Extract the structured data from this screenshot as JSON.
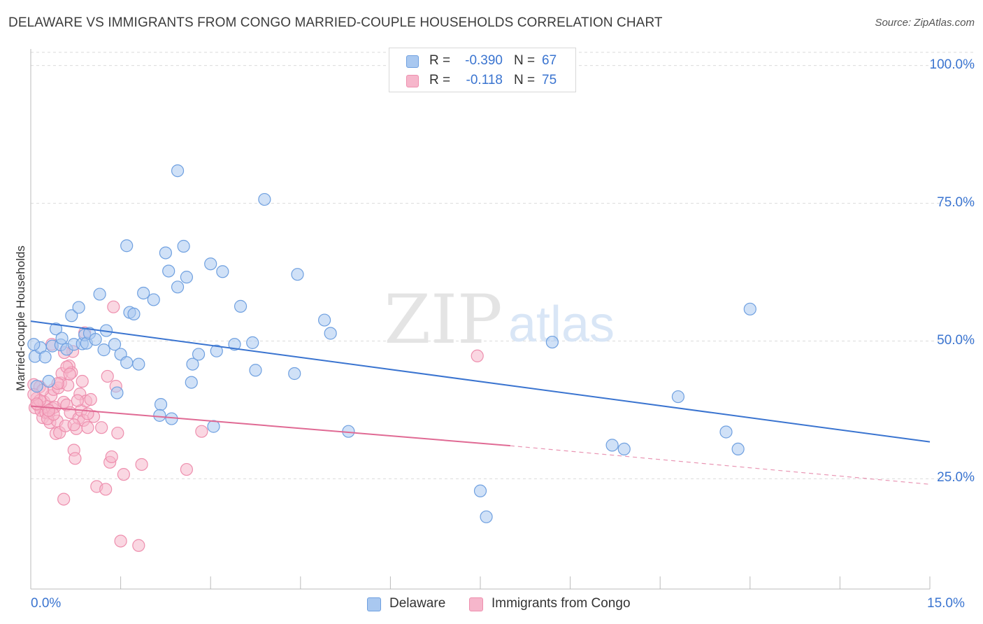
{
  "header": {
    "title": "DELAWARE VS IMMIGRANTS FROM CONGO MARRIED-COUPLE HOUSEHOLDS CORRELATION CHART",
    "source": "Source: ZipAtlas.com"
  },
  "stats": [
    {
      "r_label": "R =",
      "r_value": "-0.390",
      "n_label": "N =",
      "n_value": "67",
      "color": "#a9c8f0"
    },
    {
      "r_label": "R =",
      "r_value": "-0.118",
      "n_label": "N =",
      "n_value": "75",
      "color": "#f6b6cb"
    }
  ],
  "watermark": {
    "zip": "ZIP",
    "atlas": "atlas"
  },
  "chart_data": {
    "type": "scatter",
    "title": "DELAWARE VS IMMIGRANTS FROM CONGO MARRIED-COUPLE HOUSEHOLDS CORRELATION CHART",
    "xlabel": "",
    "ylabel": "Married-couple Households",
    "xlim": [
      0,
      15
    ],
    "ylim": [
      5,
      103
    ],
    "x_tick_labels": [
      "0.0%",
      "15.0%"
    ],
    "y_ticks": [
      25,
      50,
      75,
      100
    ],
    "y_tick_labels": [
      "25.0%",
      "50.0%",
      "75.0%",
      "100.0%"
    ],
    "grid": true,
    "legend": [
      "Delaware",
      "Immigrants from Congo"
    ],
    "series": [
      {
        "name": "Delaware",
        "color": "#6fa0e0",
        "fill": "#a9c8f0",
        "line_color": "#3a74d0",
        "trend": {
          "x0": 0,
          "y0": 53.6,
          "x1": 15,
          "y1": 31.7
        },
        "points": [
          [
            0.07,
            47.2
          ],
          [
            0.16,
            48.8
          ],
          [
            0.24,
            47.1
          ],
          [
            0.3,
            42.7
          ],
          [
            0.36,
            49.1
          ],
          [
            0.42,
            52.2
          ],
          [
            0.5,
            49.3
          ],
          [
            0.52,
            50.5
          ],
          [
            0.6,
            48.5
          ],
          [
            0.68,
            54.6
          ],
          [
            0.72,
            49.4
          ],
          [
            0.8,
            56.1
          ],
          [
            0.86,
            49.5
          ],
          [
            0.9,
            51.1
          ],
          [
            0.93,
            49.6
          ],
          [
            0.98,
            51.4
          ],
          [
            1.08,
            50.3
          ],
          [
            1.15,
            58.5
          ],
          [
            1.22,
            48.4
          ],
          [
            1.26,
            51.9
          ],
          [
            1.4,
            49.4
          ],
          [
            1.44,
            40.6
          ],
          [
            1.5,
            47.6
          ],
          [
            1.6,
            46.1
          ],
          [
            1.6,
            67.3
          ],
          [
            1.65,
            55.2
          ],
          [
            1.72,
            54.9
          ],
          [
            1.8,
            45.8
          ],
          [
            1.88,
            58.7
          ],
          [
            2.05,
            57.5
          ],
          [
            2.17,
            38.5
          ],
          [
            2.15,
            36.5
          ],
          [
            2.25,
            66.0
          ],
          [
            2.3,
            62.7
          ],
          [
            2.35,
            35.9
          ],
          [
            2.45,
            59.8
          ],
          [
            2.45,
            80.9
          ],
          [
            2.55,
            67.2
          ],
          [
            2.6,
            61.6
          ],
          [
            2.68,
            42.5
          ],
          [
            2.7,
            45.8
          ],
          [
            2.8,
            47.6
          ],
          [
            3.0,
            64.0
          ],
          [
            3.05,
            34.5
          ],
          [
            3.1,
            48.2
          ],
          [
            3.2,
            62.6
          ],
          [
            3.4,
            49.4
          ],
          [
            3.5,
            56.3
          ],
          [
            3.7,
            49.7
          ],
          [
            3.75,
            44.7
          ],
          [
            3.9,
            75.7
          ],
          [
            4.4,
            44.1
          ],
          [
            4.45,
            62.1
          ],
          [
            4.9,
            53.8
          ],
          [
            5.0,
            51.4
          ],
          [
            5.3,
            33.6
          ],
          [
            7.5,
            22.8
          ],
          [
            7.6,
            18.1
          ],
          [
            8.7,
            49.8
          ],
          [
            9.7,
            31.1
          ],
          [
            9.9,
            30.4
          ],
          [
            10.8,
            39.9
          ],
          [
            11.6,
            33.5
          ],
          [
            11.8,
            30.4
          ],
          [
            12.0,
            55.8
          ],
          [
            0.05,
            49.4
          ],
          [
            0.1,
            41.8
          ]
        ]
      },
      {
        "name": "Immigrants from Congo",
        "color": "#ee8fae",
        "fill": "#f6b6cb",
        "line_color": "#e06a94",
        "trend": {
          "x0": 0,
          "y0": 38.2,
          "x1": 8.0,
          "y1": 31.0
        },
        "trend_dashed": {
          "x0": 8.0,
          "y0": 31.0,
          "x1": 15,
          "y1": 24.0
        },
        "points": [
          [
            0.05,
            42.1
          ],
          [
            0.07,
            37.9
          ],
          [
            0.1,
            39.6
          ],
          [
            0.12,
            38.4
          ],
          [
            0.15,
            41.7
          ],
          [
            0.17,
            37.4
          ],
          [
            0.2,
            36.1
          ],
          [
            0.22,
            39.0
          ],
          [
            0.25,
            37.0
          ],
          [
            0.27,
            38.1
          ],
          [
            0.3,
            36.9
          ],
          [
            0.32,
            35.2
          ],
          [
            0.34,
            40.1
          ],
          [
            0.36,
            37.8
          ],
          [
            0.38,
            41.2
          ],
          [
            0.4,
            38.0
          ],
          [
            0.42,
            33.2
          ],
          [
            0.44,
            35.5
          ],
          [
            0.46,
            41.5
          ],
          [
            0.48,
            33.4
          ],
          [
            0.5,
            42.4
          ],
          [
            0.52,
            44.1
          ],
          [
            0.55,
            38.9
          ],
          [
            0.58,
            34.6
          ],
          [
            0.6,
            38.4
          ],
          [
            0.62,
            42.0
          ],
          [
            0.64,
            45.5
          ],
          [
            0.66,
            37.0
          ],
          [
            0.68,
            44.3
          ],
          [
            0.7,
            48.1
          ],
          [
            0.72,
            30.2
          ],
          [
            0.74,
            28.7
          ],
          [
            0.76,
            34.1
          ],
          [
            0.8,
            36.0
          ],
          [
            0.82,
            40.4
          ],
          [
            0.84,
            37.4
          ],
          [
            0.86,
            42.7
          ],
          [
            0.88,
            35.6
          ],
          [
            0.9,
            51.5
          ],
          [
            0.92,
            39.1
          ],
          [
            0.95,
            34.3
          ],
          [
            1.0,
            39.4
          ],
          [
            1.05,
            36.3
          ],
          [
            1.1,
            23.6
          ],
          [
            1.18,
            34.3
          ],
          [
            1.25,
            23.1
          ],
          [
            1.28,
            43.6
          ],
          [
            1.32,
            28.0
          ],
          [
            1.35,
            29.0
          ],
          [
            1.38,
            56.2
          ],
          [
            1.42,
            41.8
          ],
          [
            1.45,
            33.3
          ],
          [
            1.5,
            13.7
          ],
          [
            1.55,
            25.8
          ],
          [
            1.8,
            12.9
          ],
          [
            1.85,
            27.6
          ],
          [
            2.6,
            26.7
          ],
          [
            2.85,
            33.6
          ],
          [
            7.45,
            47.3
          ],
          [
            0.55,
            21.3
          ],
          [
            0.2,
            41.1
          ],
          [
            0.15,
            39.2
          ],
          [
            0.35,
            49.4
          ],
          [
            0.45,
            42.3
          ],
          [
            0.28,
            35.9
          ],
          [
            0.05,
            40.3
          ],
          [
            0.1,
            38.6
          ],
          [
            0.38,
            36.7
          ],
          [
            0.6,
            45.3
          ],
          [
            0.65,
            44.0
          ],
          [
            0.72,
            34.8
          ],
          [
            0.3,
            37.4
          ],
          [
            0.56,
            47.9
          ],
          [
            0.78,
            39.2
          ],
          [
            0.95,
            36.8
          ]
        ]
      }
    ]
  }
}
